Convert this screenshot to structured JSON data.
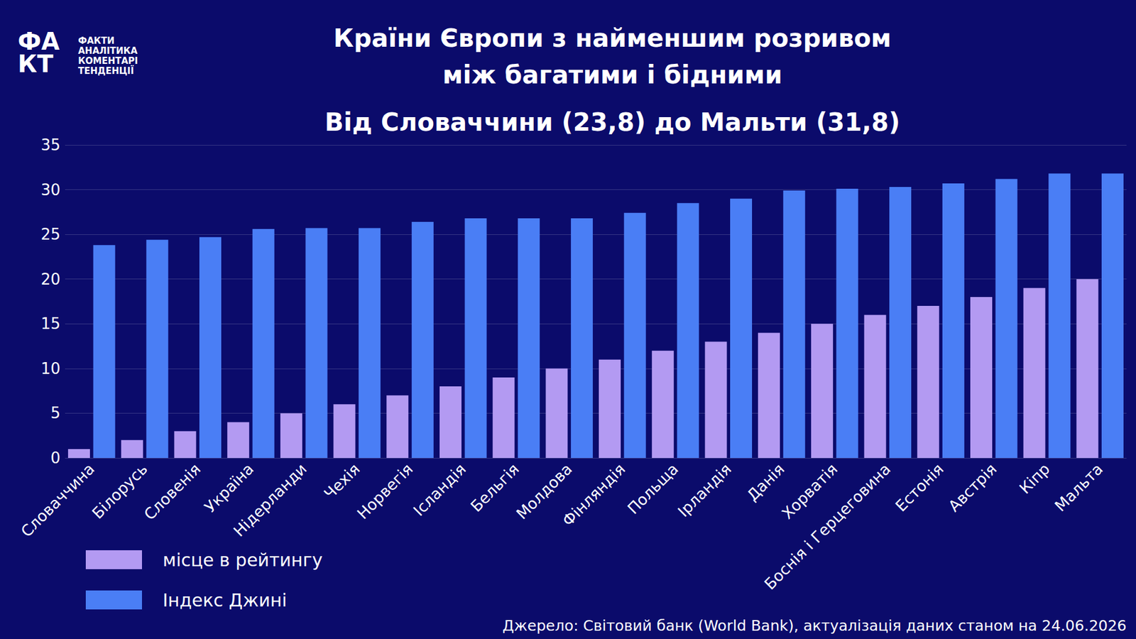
{
  "chart_data": {
    "type": "bar",
    "title": "Країни Європи з найменшим розривом\nміж багатими і бідними",
    "subtitle": "Від Словаччини (23,8) до Мальти (31,8)",
    "logo": {
      "mark": [
        "ФА",
        "КТ"
      ],
      "lines": [
        "ФАКТИ",
        "АНАЛІТИКА",
        "КОМЕНТАРІ",
        "ТЕНДЕНЦІЇ"
      ]
    },
    "source": "Джерело: Світовий банк (World Bank), актуалізація даних станом на 24.06.2026",
    "categories": [
      "Словаччина",
      "Білорусь",
      "Словенія",
      "Україна",
      "Нідерланди",
      "Чехія",
      "Норвегія",
      "Ісландія",
      "Бельгія",
      "Молдова",
      "Фінляндія",
      "Польща",
      "Ірландія",
      "Данія",
      "Хорватія",
      "Боснія і Герцеговина",
      "Естонія",
      "Австрія",
      "Кіпр",
      "Мальта"
    ],
    "series": [
      {
        "name": "місце в рейтингу",
        "color": "#b39af2",
        "values": [
          1,
          2,
          3,
          4,
          5,
          6,
          7,
          8,
          9,
          10,
          11,
          12,
          13,
          14,
          15,
          16,
          17,
          18,
          19,
          20
        ]
      },
      {
        "name": "Індекс Джині",
        "color": "#4a7ef5",
        "values": [
          23.8,
          24.4,
          24.7,
          25.6,
          25.7,
          25.7,
          26.4,
          26.8,
          26.8,
          26.8,
          27.4,
          28.5,
          29.0,
          29.9,
          30.1,
          30.3,
          30.7,
          31.2,
          31.8,
          31.8
        ]
      }
    ],
    "ylim": [
      0,
      35
    ],
    "yticks": [
      0,
      5,
      10,
      15,
      20,
      25,
      30,
      35
    ],
    "grid": true,
    "legend": "bottom left"
  }
}
